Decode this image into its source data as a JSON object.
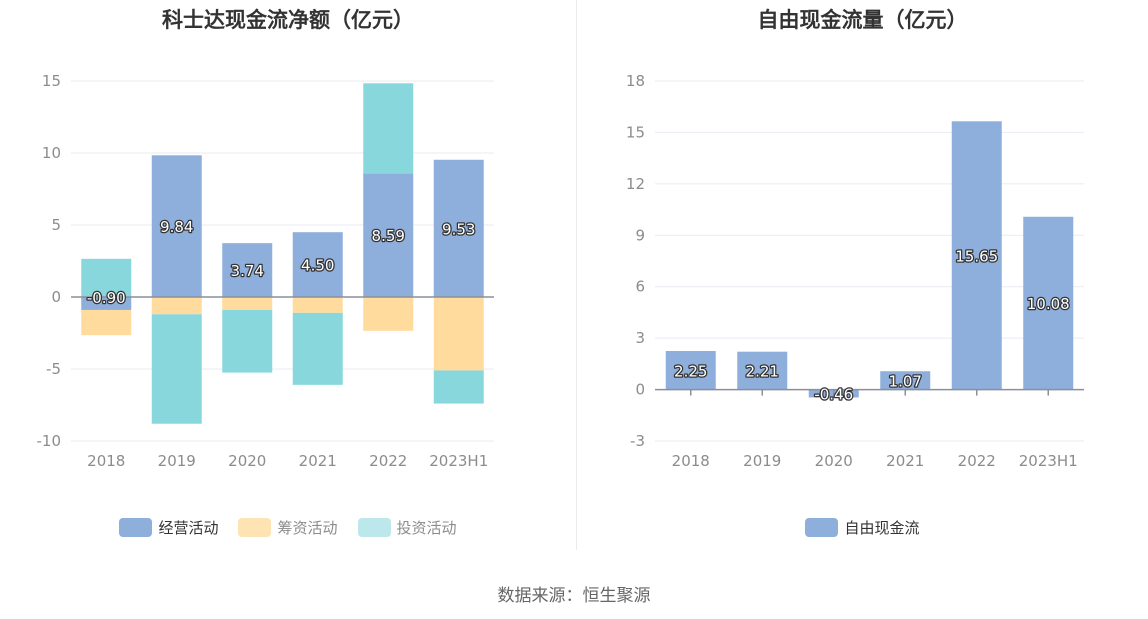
{
  "chart_data": [
    {
      "type": "bar",
      "stacked": true,
      "title": "科士达现金流净额（亿元）",
      "categories": [
        "2018",
        "2019",
        "2020",
        "2021",
        "2022",
        "2023H1"
      ],
      "series": [
        {
          "name": "经营活动",
          "color": "#8eaedb",
          "values": [
            -0.9,
            9.84,
            3.74,
            4.5,
            8.59,
            9.53
          ]
        },
        {
          "name": "筹资活动",
          "color": "#ffdc9e",
          "values": [
            -1.75,
            -1.2,
            -0.9,
            -1.1,
            -2.35,
            -5.1
          ]
        },
        {
          "name": "投资活动",
          "color": "#88d7dc",
          "values": [
            2.65,
            -7.6,
            -4.35,
            -5.0,
            6.25,
            -2.3
          ]
        }
      ],
      "data_labels": [
        "-0.90",
        "9.84",
        "3.74",
        "4.50",
        "8.59",
        "9.53"
      ],
      "legend_colors": [
        "#8eaedb",
        "#ffe4b3",
        "#bde8eb"
      ],
      "yticks": [
        15,
        10,
        5,
        0,
        -5,
        -10
      ],
      "ylim": [
        -10,
        15
      ],
      "xlabel": "",
      "ylabel": ""
    },
    {
      "type": "bar",
      "title": "自由现金流量（亿元）",
      "categories": [
        "2018",
        "2019",
        "2020",
        "2021",
        "2022",
        "2023H1"
      ],
      "series": [
        {
          "name": "自由现金流",
          "color": "#8eaedb",
          "values": [
            2.25,
            2.21,
            -0.46,
            1.07,
            15.65,
            10.08
          ]
        }
      ],
      "data_labels": [
        "2.25",
        "2.21",
        "-0.46",
        "1.07",
        "15.65",
        "10.08"
      ],
      "yticks": [
        18,
        15,
        12,
        9,
        6,
        3,
        0,
        -3
      ],
      "ylim": [
        -3,
        18
      ],
      "xlabel": "",
      "ylabel": ""
    }
  ],
  "source": "数据来源：恒生聚源"
}
